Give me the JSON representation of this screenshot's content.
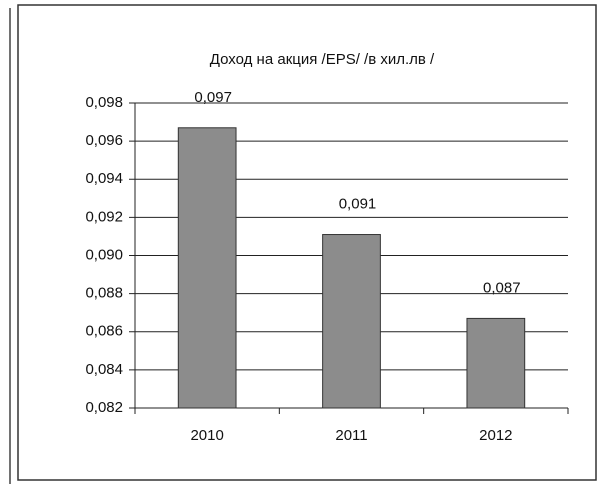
{
  "chart_data": {
    "type": "bar",
    "title": "Доход на акция /EPS/ /в хил.лв /",
    "categories": [
      "2010",
      "2011",
      "2012"
    ],
    "values": [
      0.0967,
      0.0911,
      0.0867
    ],
    "value_labels": [
      "0,097",
      "0,091",
      "0,087"
    ],
    "color": "#8c8c8c",
    "ylim": [
      0.082,
      0.098
    ],
    "yticks": [
      {
        "value": 0.082,
        "label": "0,082"
      },
      {
        "value": 0.084,
        "label": "0,084"
      },
      {
        "value": 0.086,
        "label": "0,086"
      },
      {
        "value": 0.088,
        "label": "0,088"
      },
      {
        "value": 0.09,
        "label": "0,090"
      },
      {
        "value": 0.092,
        "label": "0,092"
      },
      {
        "value": 0.094,
        "label": "0,094"
      },
      {
        "value": 0.096,
        "label": "0,096"
      },
      {
        "value": 0.098,
        "label": "0,098"
      }
    ],
    "grid": true
  }
}
